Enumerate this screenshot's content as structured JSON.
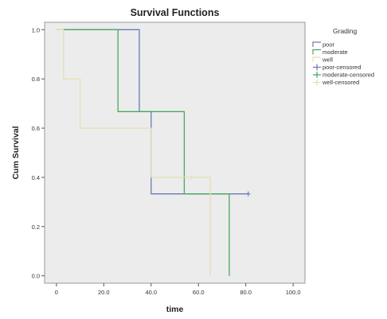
{
  "chart_data": {
    "type": "line",
    "step": true,
    "title": "Survival Functions",
    "xlabel": "time",
    "ylabel": "Cum Survival",
    "xlim": [
      -5,
      105
    ],
    "ylim": [
      -0.03,
      1.03
    ],
    "x_ticks": [
      0,
      20,
      40,
      60,
      80,
      100
    ],
    "x_tick_labels": [
      "0",
      "20.0",
      "40.0",
      "60.0",
      "80.0",
      "100.0"
    ],
    "y_ticks": [
      0,
      0.2,
      0.4,
      0.6,
      0.8,
      1.0
    ],
    "y_tick_labels": [
      "0.0",
      "0.2",
      "0.4",
      "0.6",
      "0.8",
      "1.0"
    ],
    "grid": false,
    "background": "#ececec",
    "legend": {
      "title": "Grading",
      "placement": "right",
      "entries": [
        {
          "label": "poor",
          "color": "#6c78b8",
          "marker": "line"
        },
        {
          "label": "moderate",
          "color": "#4aa860",
          "marker": "line"
        },
        {
          "label": "well",
          "color": "#e4dfb2",
          "marker": "line"
        },
        {
          "label": "poor-censored",
          "color": "#6c78b8",
          "marker": "plus"
        },
        {
          "label": "moderate-censored",
          "color": "#4aa860",
          "marker": "plus"
        },
        {
          "label": "well-censored",
          "color": "#e4dfb2",
          "marker": "plus"
        }
      ]
    },
    "series": [
      {
        "name": "poor",
        "color": "#6c78b8",
        "x": [
          0,
          35,
          35,
          40,
          40,
          81
        ],
        "y": [
          1.0,
          1.0,
          0.667,
          0.667,
          0.333,
          0.333
        ],
        "censored": [
          {
            "x": 81,
            "y": 0.333
          }
        ]
      },
      {
        "name": "moderate",
        "color": "#4aa860",
        "x": [
          2,
          26,
          26,
          54,
          54,
          73,
          73
        ],
        "y": [
          1.0,
          1.0,
          0.667,
          0.667,
          0.333,
          0.333,
          0.0
        ],
        "censored": []
      },
      {
        "name": "well",
        "color": "#e4dfb2",
        "x": [
          0,
          3,
          3,
          10,
          10,
          40,
          40,
          65,
          65
        ],
        "y": [
          1.0,
          1.0,
          0.8,
          0.8,
          0.6,
          0.6,
          0.4,
          0.4,
          0.0
        ],
        "censored": [
          {
            "x": 57,
            "y": 0.4
          }
        ]
      }
    ]
  }
}
